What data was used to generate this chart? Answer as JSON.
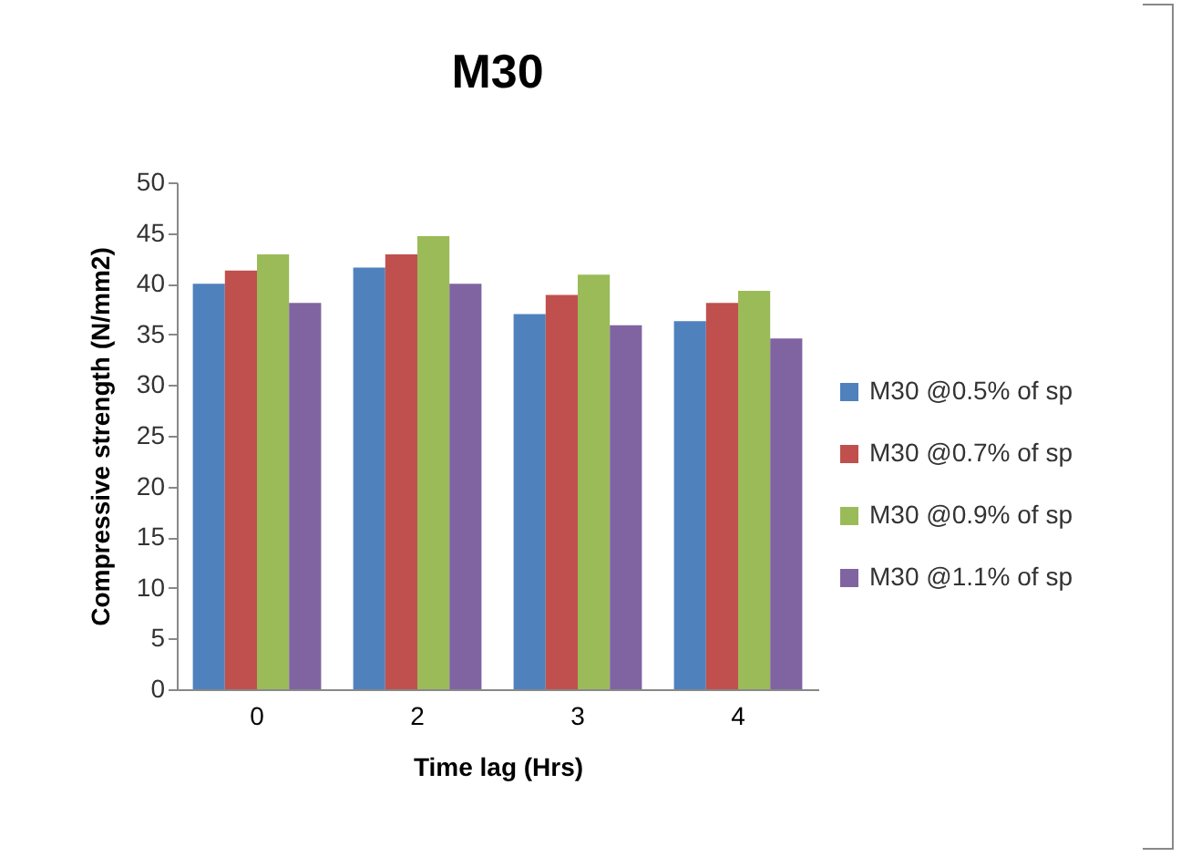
{
  "chart_data": {
    "type": "bar",
    "title": "M30",
    "xlabel": "Time lag (Hrs)",
    "ylabel": "Compressive strength (N/mm2)",
    "categories": [
      "0",
      "2",
      "3",
      "4"
    ],
    "series": [
      {
        "name": "M30 @0.5% of sp",
        "color": "#4f81bd",
        "values": [
          40,
          41.6,
          37,
          36.3
        ]
      },
      {
        "name": "M30 @0.7% of sp",
        "color": "#c0504d",
        "values": [
          41.3,
          42.9,
          38.9,
          38.1
        ]
      },
      {
        "name": "M30 @0.9% of sp",
        "color": "#9bbb59",
        "values": [
          42.9,
          44.7,
          40.9,
          39.3
        ]
      },
      {
        "name": "M30 @1.1% of sp",
        "color": "#8064a2",
        "values": [
          38.1,
          40,
          35.9,
          34.6
        ]
      }
    ],
    "ylim": [
      0,
      50
    ],
    "yticks": [
      0,
      5,
      10,
      15,
      20,
      25,
      30,
      35,
      40,
      45,
      50
    ],
    "grid": false,
    "legend": "right"
  }
}
